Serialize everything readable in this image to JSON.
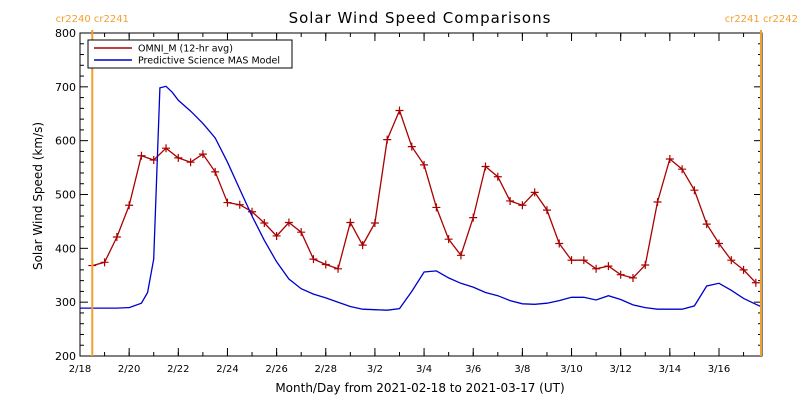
{
  "chart_data": {
    "type": "line",
    "title": "Solar Wind Speed Comparisons",
    "xlabel": "Month/Day from 2021-02-18 to 2021-03-17 (UT)",
    "ylabel": "Solar Wind Speed (km/s)",
    "ylim": [
      200,
      800
    ],
    "yticks": [
      "200",
      "300",
      "400",
      "500",
      "600",
      "700",
      "800"
    ],
    "xlim": [
      "2021-02-18",
      "2021-03-17T18:00"
    ],
    "xtick_dates": [
      "2021-02-18",
      "2021-02-20",
      "2021-02-22",
      "2021-02-24",
      "2021-02-26",
      "2021-02-28",
      "2021-03-02",
      "2021-03-04",
      "2021-03-06",
      "2021-03-08",
      "2021-03-10",
      "2021-03-12",
      "2021-03-14",
      "2021-03-16"
    ],
    "xtick_labels": [
      "2/18",
      "2/20",
      "2/22",
      "2/24",
      "2/26",
      "2/28",
      "3/2",
      "3/4",
      "3/6",
      "3/8",
      "3/10",
      "3/12",
      "3/14",
      "3/16"
    ],
    "legend": {
      "placement": "top-left"
    },
    "carrington_markers": [
      {
        "date": "2021-02-18T12:00",
        "labels": [
          "cr2240",
          "cr2241"
        ],
        "side": "left"
      },
      {
        "date": "2021-03-17T18:00",
        "labels": [
          "cr2241",
          "cr2242"
        ],
        "side": "right"
      }
    ],
    "series": [
      {
        "name": "OMNI_M (12-hr avg)",
        "color": "#aa0000",
        "marker": "plus",
        "x": [
          "2021-02-18T12:00",
          "2021-02-19T00:00",
          "2021-02-19T12:00",
          "2021-02-20T00:00",
          "2021-02-20T12:00",
          "2021-02-21T00:00",
          "2021-02-21T12:00",
          "2021-02-22T00:00",
          "2021-02-22T12:00",
          "2021-02-23T00:00",
          "2021-02-23T12:00",
          "2021-02-24T00:00",
          "2021-02-24T12:00",
          "2021-02-25T00:00",
          "2021-02-25T12:00",
          "2021-02-26T00:00",
          "2021-02-26T12:00",
          "2021-02-27T00:00",
          "2021-02-27T12:00",
          "2021-02-28T00:00",
          "2021-02-28T12:00",
          "2021-03-01T00:00",
          "2021-03-01T12:00",
          "2021-03-02T00:00",
          "2021-03-02T12:00",
          "2021-03-03T00:00",
          "2021-03-03T12:00",
          "2021-03-04T00:00",
          "2021-03-04T12:00",
          "2021-03-05T00:00",
          "2021-03-05T12:00",
          "2021-03-06T00:00",
          "2021-03-06T12:00",
          "2021-03-07T00:00",
          "2021-03-07T12:00",
          "2021-03-08T00:00",
          "2021-03-08T12:00",
          "2021-03-09T00:00",
          "2021-03-09T12:00",
          "2021-03-10T00:00",
          "2021-03-10T12:00",
          "2021-03-11T00:00",
          "2021-03-11T12:00",
          "2021-03-12T00:00",
          "2021-03-12T12:00",
          "2021-03-13T00:00",
          "2021-03-13T12:00",
          "2021-03-14T00:00",
          "2021-03-14T12:00",
          "2021-03-15T00:00",
          "2021-03-15T12:00",
          "2021-03-16T00:00",
          "2021-03-16T12:00",
          "2021-03-17T00:00",
          "2021-03-17T12:00"
        ],
        "y": [
          368,
          374,
          421,
          480,
          572,
          564,
          586,
          568,
          560,
          575,
          542,
          485,
          481,
          468,
          447,
          423,
          448,
          430,
          380,
          370,
          362,
          448,
          406,
          447,
          602,
          656,
          589,
          555,
          476,
          417,
          387,
          457,
          552,
          533,
          488,
          480,
          504,
          471,
          409,
          378,
          378,
          362,
          367,
          351,
          345,
          369,
          486,
          566,
          547,
          508,
          445,
          409,
          378,
          360,
          336
        ]
      },
      {
        "name": "Predictive Science MAS Model",
        "color": "#0000cc",
        "marker": "none",
        "x": [
          "2021-02-18T00:00",
          "2021-02-19T00:00",
          "2021-02-19T12:00",
          "2021-02-20T00:00",
          "2021-02-20T12:00",
          "2021-02-20T18:00",
          "2021-02-21T00:00",
          "2021-02-21T06:00",
          "2021-02-21T12:00",
          "2021-02-21T18:00",
          "2021-02-22T00:00",
          "2021-02-22T12:00",
          "2021-02-23T00:00",
          "2021-02-23T12:00",
          "2021-02-24T00:00",
          "2021-02-24T12:00",
          "2021-02-25T00:00",
          "2021-02-25T12:00",
          "2021-02-26T00:00",
          "2021-02-26T12:00",
          "2021-02-27T00:00",
          "2021-02-27T12:00",
          "2021-02-28T00:00",
          "2021-02-28T12:00",
          "2021-03-01T00:00",
          "2021-03-01T12:00",
          "2021-03-02T00:00",
          "2021-03-02T12:00",
          "2021-03-03T00:00",
          "2021-03-03T12:00",
          "2021-03-04T00:00",
          "2021-03-04T12:00",
          "2021-03-05T00:00",
          "2021-03-05T12:00",
          "2021-03-06T00:00",
          "2021-03-06T12:00",
          "2021-03-07T00:00",
          "2021-03-07T12:00",
          "2021-03-08T00:00",
          "2021-03-08T12:00",
          "2021-03-09T00:00",
          "2021-03-09T12:00",
          "2021-03-10T00:00",
          "2021-03-10T12:00",
          "2021-03-11T00:00",
          "2021-03-11T12:00",
          "2021-03-12T00:00",
          "2021-03-12T12:00",
          "2021-03-13T00:00",
          "2021-03-13T12:00",
          "2021-03-14T00:00",
          "2021-03-14T12:00",
          "2021-03-15T00:00",
          "2021-03-15T12:00",
          "2021-03-16T00:00",
          "2021-03-16T12:00",
          "2021-03-17T00:00",
          "2021-03-17T12:00",
          "2021-03-17T18:00"
        ],
        "y": [
          289,
          289,
          289,
          290,
          298,
          318,
          380,
          698,
          701,
          690,
          675,
          655,
          632,
          605,
          560,
          510,
          460,
          415,
          375,
          343,
          325,
          315,
          308,
          300,
          292,
          287,
          286,
          285,
          288,
          320,
          356,
          358,
          345,
          335,
          328,
          318,
          312,
          303,
          297,
          296,
          298,
          303,
          309,
          309,
          304,
          312,
          305,
          295,
          290,
          287,
          287,
          287,
          293,
          330,
          335,
          322,
          307,
          296,
          291
        ]
      }
    ]
  }
}
